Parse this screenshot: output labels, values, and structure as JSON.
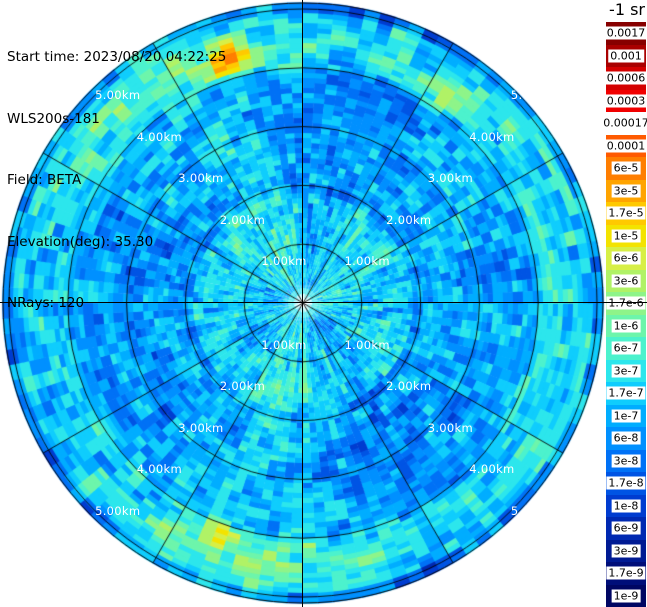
{
  "info_lines": [
    "Start time: 2023/08/20 04:22:25",
    "WLS200s-181",
    "Field: BETA",
    "Elevation(deg): 35.30",
    "NRays: 120"
  ],
  "chart_data": {
    "type": "heatmap",
    "projection": "polar-ppi",
    "title": "",
    "annotations": {
      "start_time": "2023/08/20 04:22:25",
      "instrument": "WLS200s-181",
      "field": "BETA",
      "elevation_deg": 35.3,
      "n_rays": 120
    },
    "range_rings_km": [
      1,
      2,
      3,
      4,
      5
    ],
    "ring_labels": [
      "1.00km",
      "2.00km",
      "3.00km",
      "4.00km",
      "5.00km"
    ],
    "ring_label_azimuths_deg": [
      45,
      135,
      225,
      315
    ],
    "azimuth_spoke_step_deg": 30,
    "max_range_km": 5.1,
    "grid_color": "#000000",
    "ring_label_color": "#ffffff",
    "colorbar": {
      "title": "-1 sr",
      "orientation": "vertical",
      "scale": "log",
      "ticks": [
        {
          "label": "0.0017",
          "color": "#870000",
          "box": true
        },
        {
          "label": "0.001",
          "color": "#a90000",
          "box": true
        },
        {
          "label": "0.0006",
          "color": "#d40000",
          "box": true
        },
        {
          "label": "0.0003",
          "color": "#f10000",
          "box": true
        },
        {
          "label": "0.00017",
          "color": "#ffffff",
          "box": false
        },
        {
          "label": "0.0001",
          "color": "#ff5a00",
          "box": true
        },
        {
          "label": "6e-5",
          "color": "#ff7e00",
          "box": true
        },
        {
          "label": "3e-5",
          "color": "#ffa400",
          "box": true
        },
        {
          "label": "1.7e-5",
          "color": "#ffc900",
          "box": true
        },
        {
          "label": "1e-5",
          "color": "#f3e300",
          "box": true
        },
        {
          "label": "6e-6",
          "color": "#d7ef46",
          "box": true
        },
        {
          "label": "3e-6",
          "color": "#b0f266",
          "box": true
        },
        {
          "label": "1.7e-6",
          "color": "#8ef489",
          "box": true
        },
        {
          "label": "1e-6",
          "color": "#6df5ab",
          "box": true
        },
        {
          "label": "6e-7",
          "color": "#4cf2cd",
          "box": true
        },
        {
          "label": "3e-7",
          "color": "#2ce6ec",
          "box": true
        },
        {
          "label": "1.7e-7",
          "color": "#0fcdfd",
          "box": true
        },
        {
          "label": "1e-7",
          "color": "#00adff",
          "box": true
        },
        {
          "label": "6e-8",
          "color": "#0090ff",
          "box": true
        },
        {
          "label": "3e-8",
          "color": "#0071f6",
          "box": true
        },
        {
          "label": "1.7e-8",
          "color": "#0054e4",
          "box": true
        },
        {
          "label": "1e-8",
          "color": "#003cd0",
          "box": true
        },
        {
          "label": "6e-9",
          "color": "#0029b2",
          "box": true
        },
        {
          "label": "3e-9",
          "color": "#001a93",
          "box": true
        },
        {
          "label": "1.7e-9",
          "color": "#000e79",
          "box": true
        },
        {
          "label": "1e-9",
          "color": "#000663",
          "box": true
        }
      ]
    },
    "field_texture": {
      "description": "speckled aerosol backscatter, mostly 3e-8 to 1e-6 (blues/cyans); brighter cyan inside 1.9 km; cyan band near 4.0-4.9 km; few yellow-green streaks ~1e-5",
      "band": {
        "center_km": 4.45,
        "sigma_km": 0.33,
        "boost": 0.5
      },
      "features": [
        {
          "az_deg": 107,
          "range_km": 4.35,
          "az_sigma_deg": 5.0,
          "range_sigma_km": 0.28,
          "boost": 1.6
        },
        {
          "az_deg": 55,
          "range_km": 4.3,
          "az_sigma_deg": 6.0,
          "range_sigma_km": 0.35,
          "boost": 1.1
        },
        {
          "az_deg": 250,
          "range_km": 4.15,
          "az_sigma_deg": 3.5,
          "range_sigma_km": 0.22,
          "boost": 1.35
        },
        {
          "az_deg": 212,
          "range_km": 3.95,
          "az_sigma_deg": 3.0,
          "range_sigma_km": 0.2,
          "boost": 0.8
        }
      ]
    }
  }
}
